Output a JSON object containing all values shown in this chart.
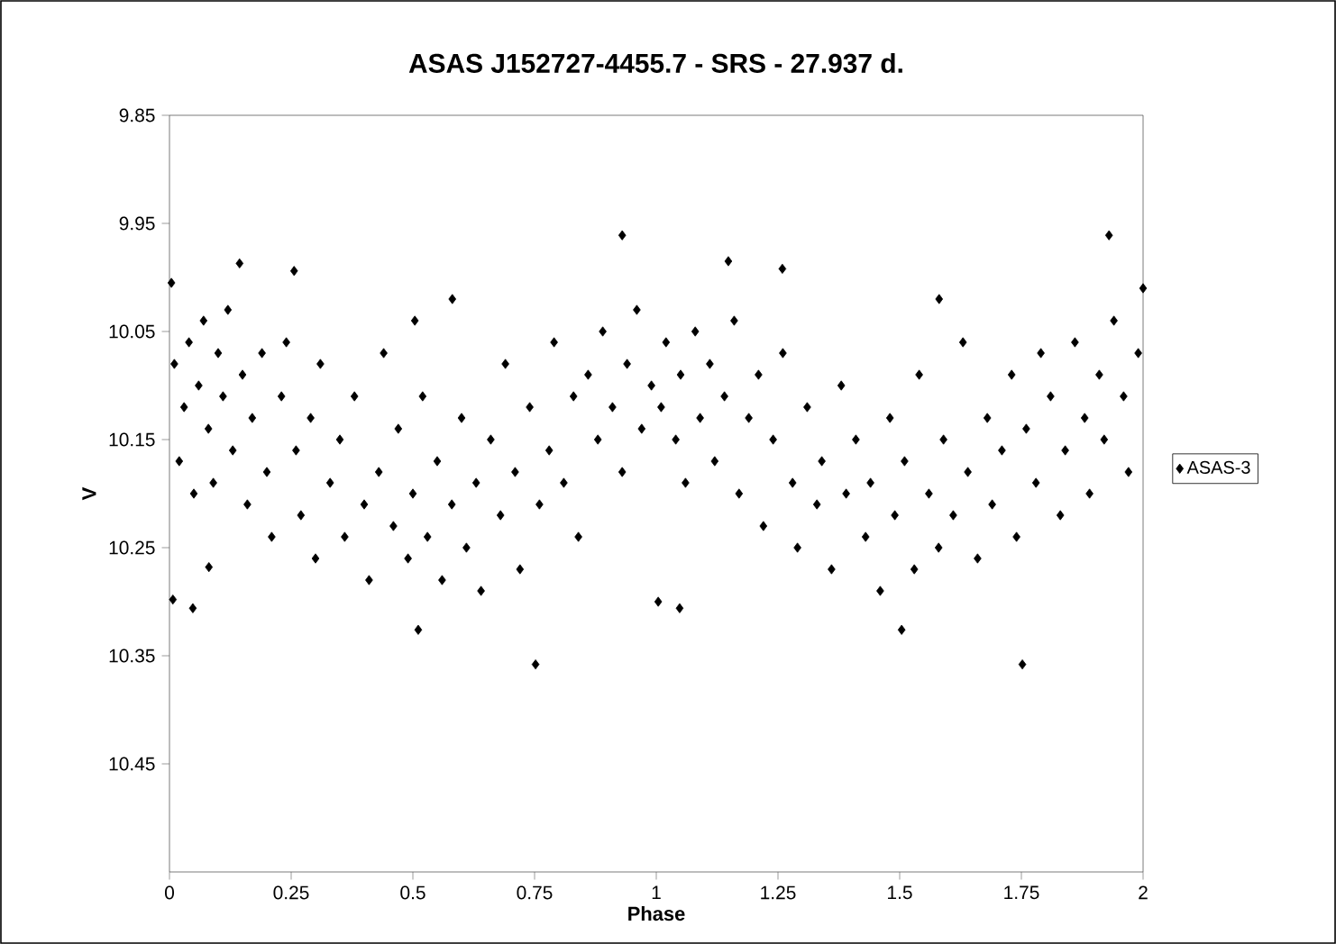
{
  "chart_data": {
    "type": "scatter",
    "title": "ASAS J152727-4455.7  - SRS - 27.937 d.",
    "xlabel": "Phase",
    "ylabel": "V",
    "xlim": [
      0,
      2
    ],
    "xticks": [
      0,
      0.25,
      0.5,
      0.75,
      1,
      1.25,
      1.5,
      1.75,
      2
    ],
    "ylim": [
      10.55,
      9.85
    ],
    "yticks": [
      9.85,
      9.95,
      10.05,
      10.15,
      10.25,
      10.35,
      10.45
    ],
    "legend": "right",
    "marker": "diamond",
    "grid": false,
    "series": [
      {
        "name": "ASAS-3",
        "color": "#000000",
        "x": [
          0.004,
          0.007,
          0.048,
          0.081,
          0.144,
          0.256,
          0.93,
          0.752,
          0.511,
          1.004,
          1.048,
          1.148,
          1.259,
          1.93,
          1.752,
          1.504,
          2.0,
          0.581,
          1.581,
          0.504,
          0.01,
          0.02,
          0.03,
          0.04,
          0.05,
          0.06,
          0.07,
          0.08,
          0.09,
          0.1,
          0.11,
          0.12,
          0.13,
          0.15,
          0.16,
          0.17,
          0.19,
          0.2,
          0.21,
          0.23,
          0.24,
          0.26,
          0.27,
          0.29,
          0.3,
          0.31,
          0.33,
          0.35,
          0.36,
          0.38,
          0.4,
          0.41,
          0.43,
          0.44,
          0.46,
          0.47,
          0.49,
          0.5,
          0.52,
          0.53,
          0.55,
          0.56,
          0.58,
          0.6,
          0.61,
          0.63,
          0.64,
          0.66,
          0.68,
          0.69,
          0.71,
          0.72,
          0.74,
          0.76,
          0.78,
          0.79,
          0.81,
          0.83,
          0.84,
          0.86,
          0.88,
          0.89,
          0.91,
          0.93,
          0.94,
          0.96,
          0.97,
          0.99,
          1.01,
          1.02,
          1.04,
          1.05,
          1.06,
          1.08,
          1.09,
          1.11,
          1.12,
          1.14,
          1.16,
          1.17,
          1.19,
          1.21,
          1.22,
          1.24,
          1.26,
          1.28,
          1.29,
          1.31,
          1.33,
          1.34,
          1.36,
          1.38,
          1.39,
          1.41,
          1.43,
          1.44,
          1.46,
          1.48,
          1.49,
          1.51,
          1.53,
          1.54,
          1.56,
          1.58,
          1.59,
          1.61,
          1.63,
          1.64,
          1.66,
          1.68,
          1.69,
          1.71,
          1.73,
          1.74,
          1.76,
          1.78,
          1.79,
          1.81,
          1.83,
          1.84,
          1.86,
          1.88,
          1.89,
          1.91,
          1.92,
          1.94,
          1.96,
          1.97,
          1.99
        ],
        "values": [
          10.005,
          10.298,
          10.306,
          10.268,
          9.987,
          9.994,
          9.961,
          10.358,
          10.326,
          10.3,
          10.306,
          9.985,
          9.992,
          9.961,
          10.358,
          10.326,
          10.01,
          10.02,
          10.02,
          10.04,
          10.08,
          10.17,
          10.12,
          10.06,
          10.2,
          10.1,
          10.04,
          10.14,
          10.19,
          10.07,
          10.11,
          10.03,
          10.16,
          10.09,
          10.21,
          10.13,
          10.07,
          10.18,
          10.24,
          10.11,
          10.06,
          10.16,
          10.22,
          10.13,
          10.26,
          10.08,
          10.19,
          10.15,
          10.24,
          10.11,
          10.21,
          10.28,
          10.18,
          10.07,
          10.23,
          10.14,
          10.26,
          10.2,
          10.11,
          10.24,
          10.17,
          10.28,
          10.21,
          10.13,
          10.25,
          10.19,
          10.29,
          10.15,
          10.22,
          10.08,
          10.18,
          10.27,
          10.12,
          10.21,
          10.16,
          10.06,
          10.19,
          10.11,
          10.24,
          10.09,
          10.15,
          10.05,
          10.12,
          10.18,
          10.08,
          10.03,
          10.14,
          10.1,
          10.12,
          10.06,
          10.15,
          10.09,
          10.19,
          10.05,
          10.13,
          10.08,
          10.17,
          10.11,
          10.04,
          10.2,
          10.13,
          10.09,
          10.23,
          10.15,
          10.07,
          10.19,
          10.25,
          10.12,
          10.21,
          10.17,
          10.27,
          10.1,
          10.2,
          10.15,
          10.24,
          10.19,
          10.29,
          10.13,
          10.22,
          10.17,
          10.27,
          10.09,
          10.2,
          10.25,
          10.15,
          10.22,
          10.06,
          10.18,
          10.26,
          10.13,
          10.21,
          10.16,
          10.09,
          10.24,
          10.14,
          10.19,
          10.07,
          10.11,
          10.22,
          10.16,
          10.06,
          10.13,
          10.2,
          10.09,
          10.15,
          10.04,
          10.11,
          10.18,
          10.07
        ]
      }
    ]
  }
}
